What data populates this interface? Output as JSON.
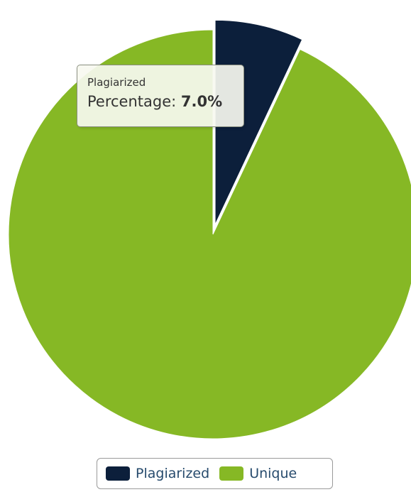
{
  "chart_data": {
    "type": "pie",
    "slices": [
      {
        "name": "Plagiarized",
        "value": 7.0,
        "color": "#0c1f3b",
        "exploded": true
      },
      {
        "name": "Unique",
        "value": 93.0,
        "color": "#86b825",
        "exploded": false
      }
    ],
    "legend_position": "bottom-center"
  },
  "tooltip": {
    "series": "Plagiarized",
    "label": "Percentage: ",
    "value": "7.0%"
  },
  "legend": {
    "items": [
      {
        "label": "Plagiarized",
        "color": "#0c1f3b"
      },
      {
        "label": "Unique",
        "color": "#86b825"
      }
    ]
  }
}
